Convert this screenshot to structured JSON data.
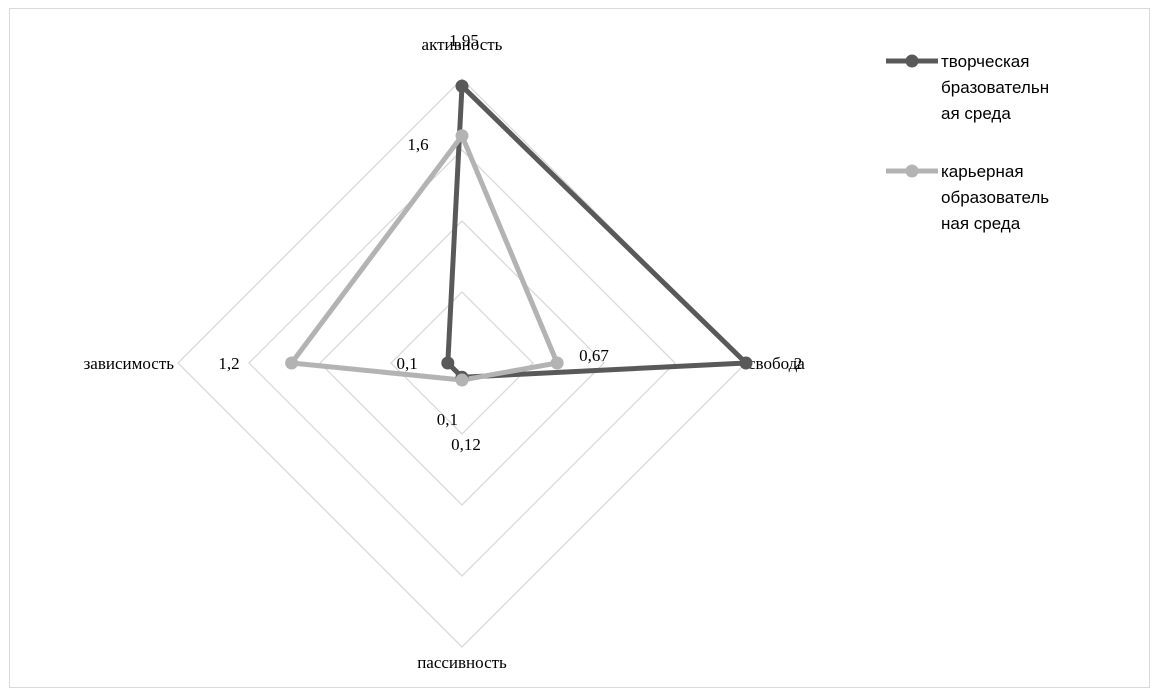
{
  "chart_data": {
    "type": "radar",
    "axes": [
      "активность",
      "свобода",
      "пассивность",
      "зависимость"
    ],
    "rmax": 2,
    "grid_levels": [
      0.5,
      1,
      1.5,
      2
    ],
    "grid": true,
    "legend_position": "top-right",
    "series": [
      {
        "name": "творческая бразовательная среда",
        "legend_lines": [
          "творческая",
          "бразовательн",
          "ая среда"
        ],
        "values": [
          1.95,
          2,
          0.1,
          0.1
        ],
        "labels": [
          "1,95",
          "2",
          "0,1",
          "0,1"
        ],
        "color": "#595959"
      },
      {
        "name": "карьерная образовательная среда",
        "legend_lines": [
          "карьерная",
          "образователь",
          "ная среда"
        ],
        "values": [
          1.6,
          0.67,
          0.12,
          1.2
        ],
        "labels": [
          "1,6",
          "0,67",
          "0,12",
          "1,2"
        ],
        "color": "#b3b3b3"
      }
    ]
  }
}
